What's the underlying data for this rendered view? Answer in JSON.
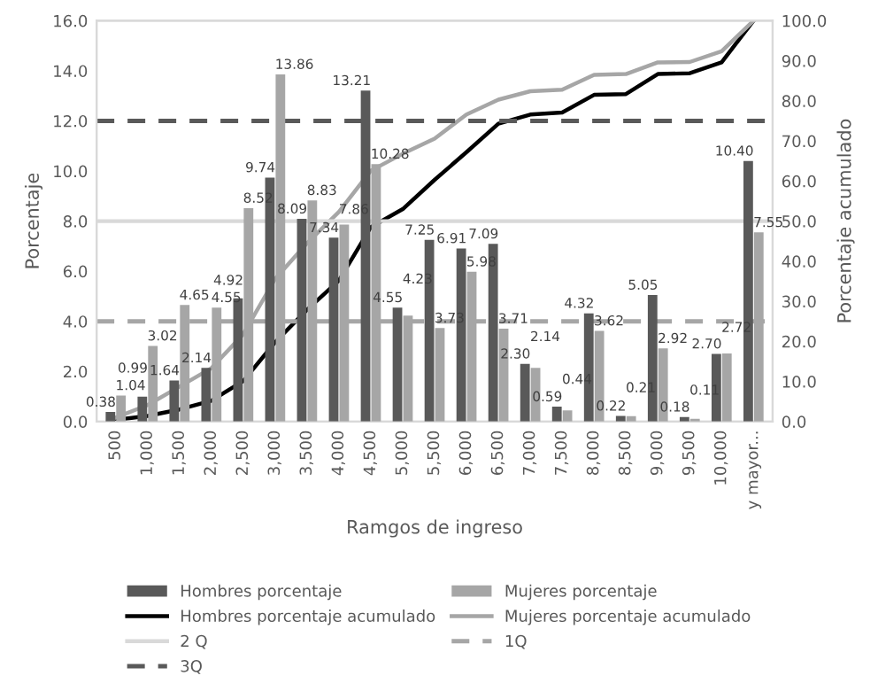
{
  "chart_data": {
    "type": "bar",
    "xlabel": "Ramgos de ingreso",
    "ylabel": "Porcentaje",
    "y2label": "Porcentaje acumulado",
    "categories": [
      "500",
      "1,000",
      "1,500",
      "2,000",
      "2,500",
      "3,000",
      "3,500",
      "4,000",
      "4,500",
      "5,000",
      "5,500",
      "6,000",
      "6,500",
      "7,000",
      "7,500",
      "8,000",
      "8,500",
      "9,000",
      "9,500",
      "10,000",
      "y mayor..."
    ],
    "series": [
      {
        "name": "Hombres porcentaje",
        "color": "#595959",
        "values": [
          0.38,
          0.99,
          1.64,
          2.14,
          4.92,
          9.74,
          8.09,
          7.34,
          13.21,
          4.55,
          7.25,
          6.91,
          7.09,
          2.3,
          0.59,
          4.32,
          0.22,
          5.05,
          0.18,
          2.7,
          10.4
        ],
        "value_labels": [
          "0.38",
          "0.99",
          "1.64",
          "2.14",
          "4.92",
          "9.74",
          "8.09",
          "7.34",
          "13.21",
          "4.55",
          "7.25",
          "6.91",
          "7.09",
          "2.30",
          "0.59",
          "4.32",
          "0.22",
          "5.05",
          "0.18",
          "2.70",
          "10.40"
        ]
      },
      {
        "name": "Mujeres porcentaje",
        "color": "#a6a6a6",
        "values": [
          1.04,
          3.02,
          4.65,
          4.55,
          8.52,
          13.86,
          8.83,
          7.86,
          10.28,
          4.23,
          3.73,
          5.98,
          3.71,
          2.14,
          0.44,
          3.62,
          0.21,
          2.92,
          0.11,
          2.72,
          7.55
        ],
        "value_labels": [
          "1.04",
          "3.02",
          "4.65",
          "4.55",
          "8.52",
          "13.86",
          "8.83",
          "7.86",
          "10.28",
          "4.23",
          "3.73",
          "5.98",
          "3.71",
          "2.14",
          "0.44",
          "3.62",
          "0.21",
          "2.92",
          "0.11",
          "2.72",
          "7.55"
        ]
      },
      {
        "name": "Hombres porcentaje acumulado",
        "type": "line",
        "axis": "y2",
        "color": "#000000",
        "values": [
          0.4,
          1.4,
          3.0,
          5.2,
          10.1,
          19.8,
          27.9,
          35.2,
          48.5,
          53.0,
          60.3,
          67.2,
          74.3,
          76.6,
          77.1,
          81.5,
          81.7,
          86.7,
          86.9,
          89.6,
          100
        ]
      },
      {
        "name": "Mujeres porcentaje acumulado",
        "type": "line",
        "axis": "y2",
        "color": "#a6a6a6",
        "values": [
          1.0,
          4.1,
          8.7,
          13.3,
          21.8,
          35.6,
          44.5,
          52.3,
          62.6,
          66.8,
          70.6,
          76.6,
          80.3,
          82.4,
          82.8,
          86.5,
          86.7,
          89.6,
          89.7,
          92.4,
          100
        ]
      }
    ],
    "ref_lines": [
      {
        "axis": "y",
        "value": 8,
        "label": "2 Q",
        "color": "#d9d9d9",
        "line_style": "solid"
      },
      {
        "axis": "y",
        "value": 4,
        "label": "1Q",
        "color": "#a6a6a6",
        "line_style": "dashed"
      },
      {
        "axis": "y",
        "value": 12,
        "label": "3Q",
        "color": "#595959",
        "line_style": "dashed"
      }
    ],
    "ylim": [
      0,
      16
    ],
    "yticks": [
      {
        "value": 0,
        "label": "0.0"
      },
      {
        "value": 2,
        "label": "2.0"
      },
      {
        "value": 4,
        "label": "4.0"
      },
      {
        "value": 6,
        "label": "6.0"
      },
      {
        "value": 8,
        "label": "8.0"
      },
      {
        "value": 10,
        "label": "10.0"
      },
      {
        "value": 12,
        "label": "12.0"
      },
      {
        "value": 14,
        "label": "14.0"
      },
      {
        "value": 16,
        "label": "16.0"
      }
    ],
    "y2lim": [
      0,
      100
    ],
    "y2ticks": [
      {
        "value": 0,
        "label": "0.0"
      },
      {
        "value": 10,
        "label": "10.0"
      },
      {
        "value": 20,
        "label": "20.0"
      },
      {
        "value": 30,
        "label": "30.0"
      },
      {
        "value": 40,
        "label": "40.0"
      },
      {
        "value": 50,
        "label": "50.0"
      },
      {
        "value": 60,
        "label": "60.0"
      },
      {
        "value": 70,
        "label": "70.0"
      },
      {
        "value": 80,
        "label": "80.0"
      },
      {
        "value": 90,
        "label": "90.0"
      },
      {
        "value": 100,
        "label": "100.0"
      }
    ],
    "grid": false,
    "legend": "bottom",
    "marker": "none",
    "line_style": "solid"
  }
}
